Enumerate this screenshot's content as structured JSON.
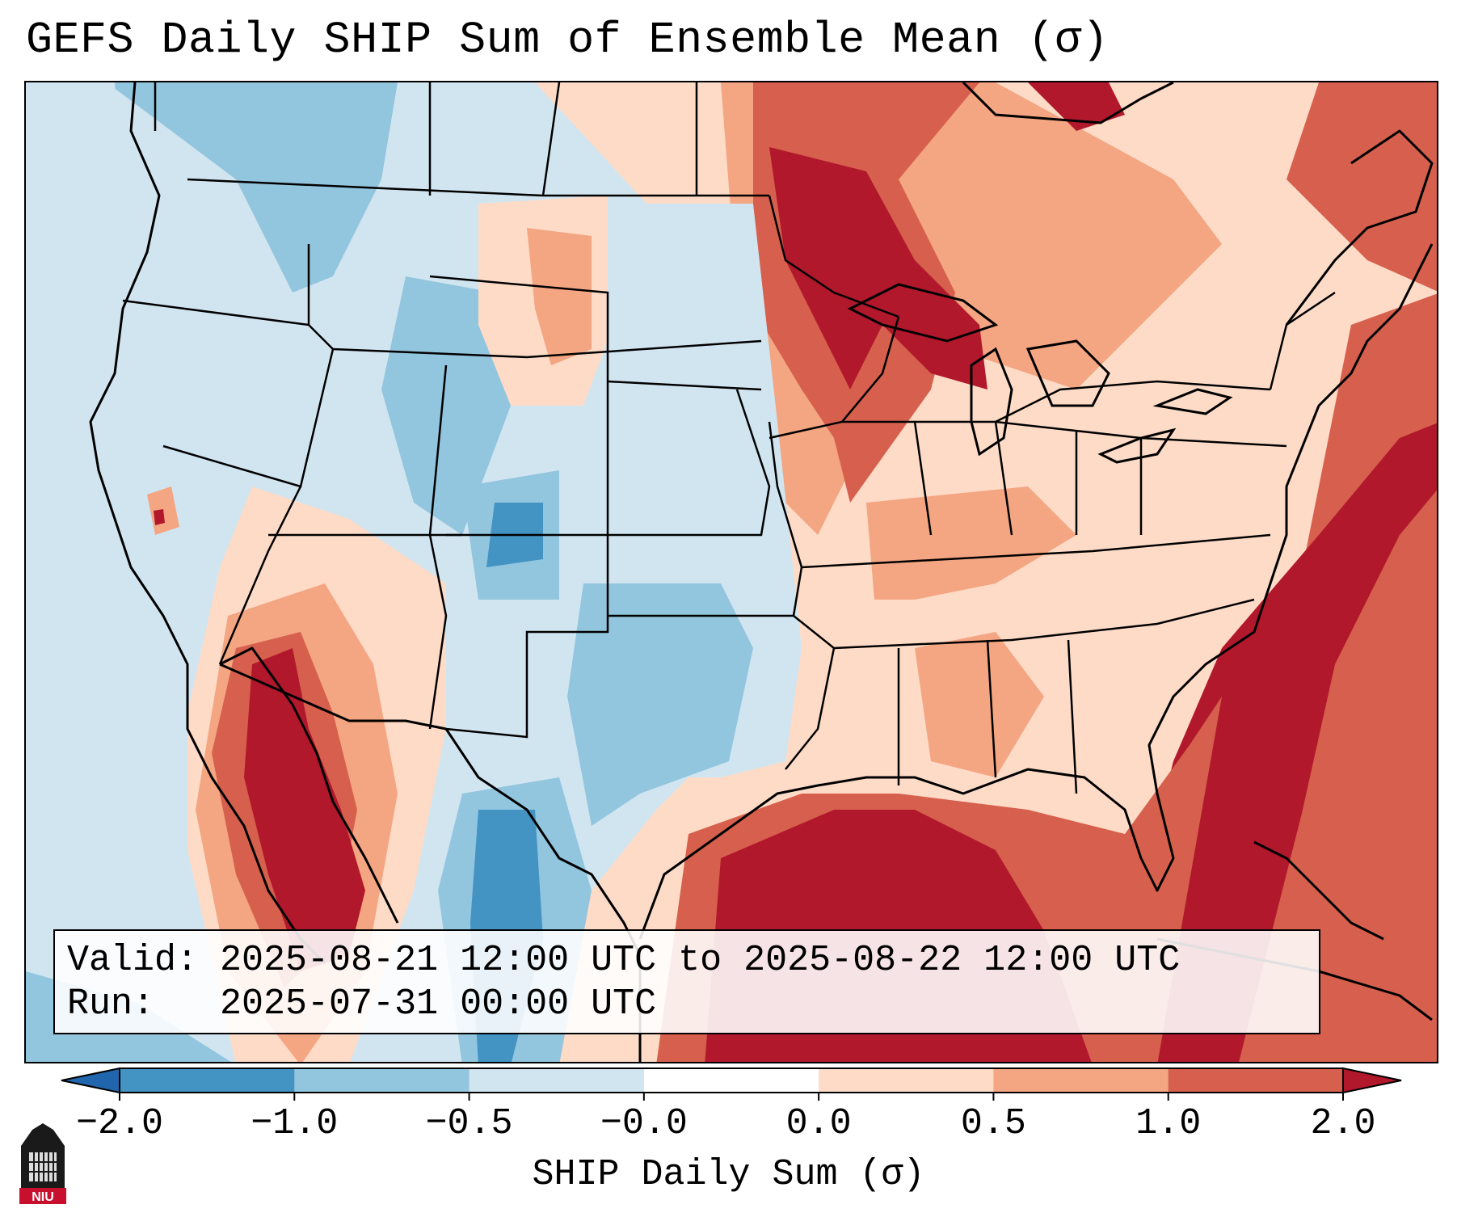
{
  "title": "GEFS Daily SHIP Sum of Ensemble Mean (σ)",
  "info": {
    "valid_line": "Valid: 2025-08-21 12:00 UTC to 2025-08-22 12:00 UTC",
    "run_line": "Run:   2025-07-31 00:00 UTC"
  },
  "colorbar": {
    "label": "SHIP Daily Sum (σ)",
    "ticks": [
      "−2.0",
      "−1.0",
      "−0.5",
      "−0.0",
      "0.0",
      "0.5",
      "1.0",
      "2.0"
    ],
    "colors": [
      "#2166ac",
      "#4393c3",
      "#92c5de",
      "#d1e5f0",
      "#ffffff",
      "#fddbc7",
      "#f4a582",
      "#d6604d",
      "#b2182b"
    ]
  },
  "logo": {
    "text": "NIU",
    "icon": "niu-logo-icon"
  }
}
